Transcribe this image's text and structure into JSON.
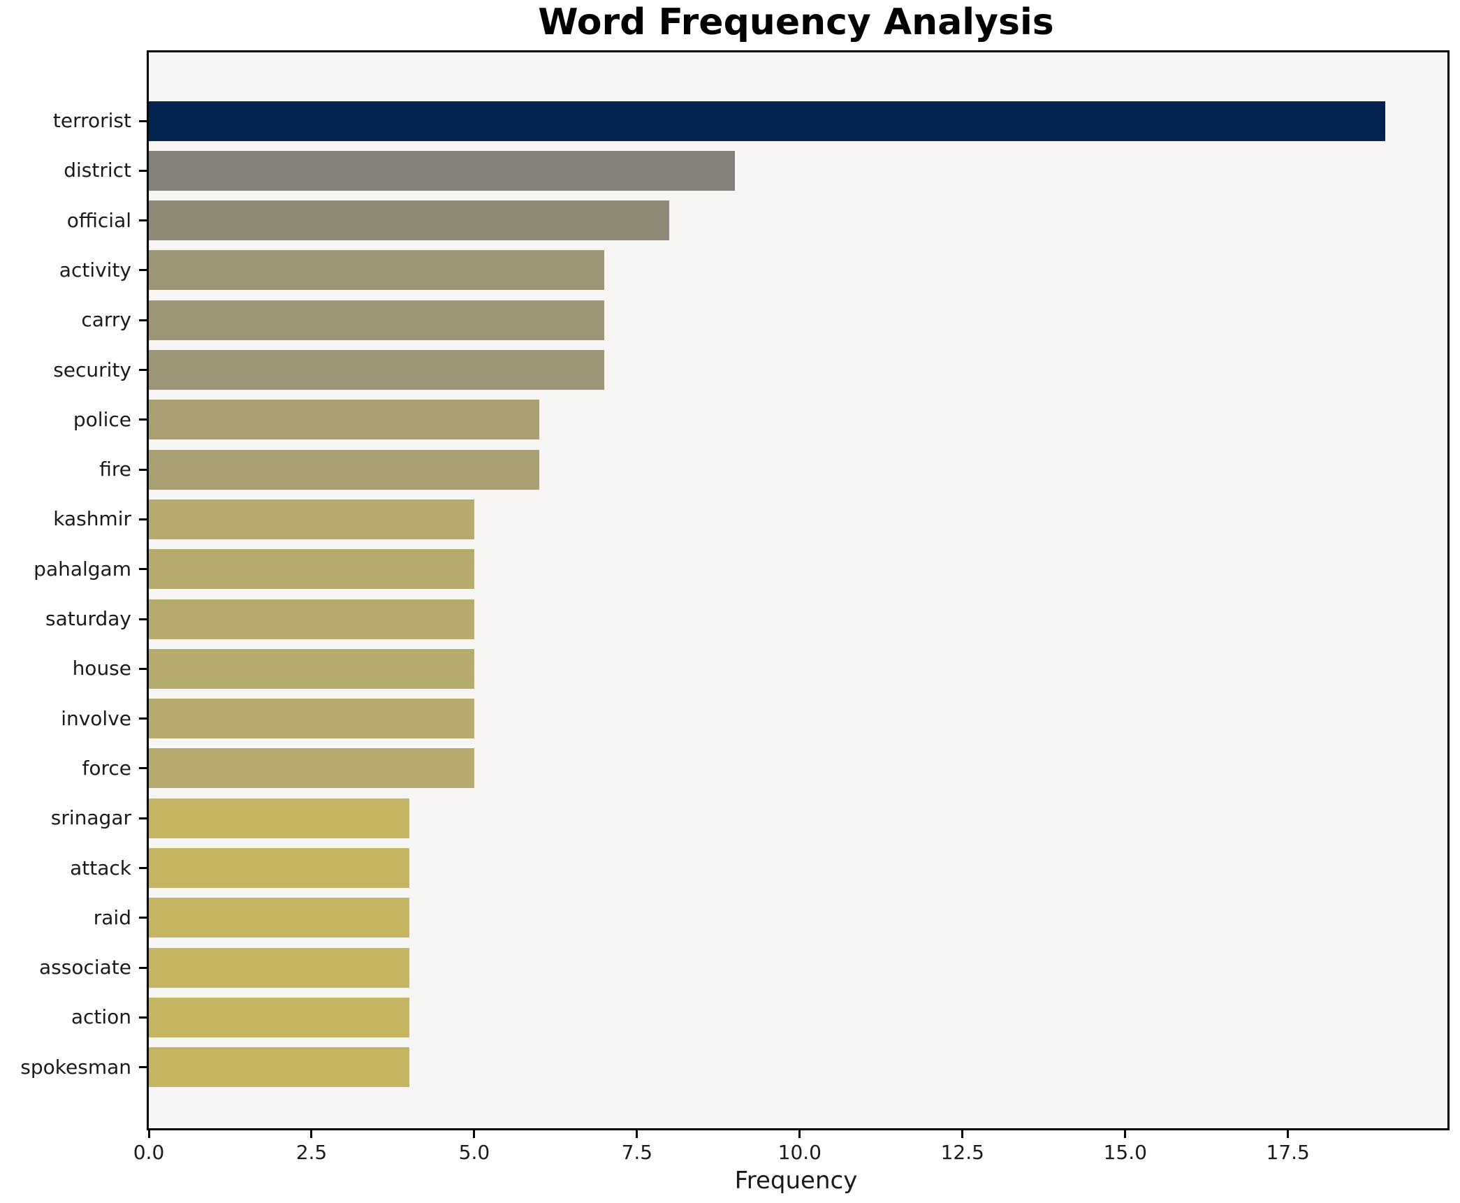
{
  "chart_data": {
    "type": "bar",
    "orientation": "horizontal",
    "title": "Word Frequency Analysis",
    "xlabel": "Frequency",
    "ylabel": "",
    "categories": [
      "terrorist",
      "district",
      "official",
      "activity",
      "carry",
      "security",
      "police",
      "fire",
      "kashmir",
      "pahalgam",
      "saturday",
      "house",
      "involve",
      "force",
      "srinagar",
      "attack",
      "raid",
      "associate",
      "action",
      "spokesman"
    ],
    "values": [
      19,
      9,
      8,
      7,
      7,
      7,
      6,
      6,
      5,
      5,
      5,
      5,
      5,
      5,
      4,
      4,
      4,
      4,
      4,
      4
    ],
    "bar_colors": [
      "#02234d",
      "#83817a",
      "#8f8a77",
      "#9b9475",
      "#9b9475",
      "#9b9475",
      "#a8a073",
      "#a8a073",
      "#b5ab6e",
      "#b5ab6e",
      "#b5ab6e",
      "#b5ab6e",
      "#b5ab6e",
      "#b5ab6e",
      "#c5b563",
      "#c5b563",
      "#c5b563",
      "#c5b563",
      "#c5b563",
      "#c5b563"
    ],
    "xlim": [
      0,
      19.95
    ],
    "xticks": [
      "0.0",
      "2.5",
      "5.0",
      "7.5",
      "10.0",
      "12.5",
      "15.0",
      "17.5"
    ],
    "grid": false,
    "legend": null,
    "plot_background": "#f7f6f5",
    "figure_background": "#ffffff",
    "spine_color": "#000000"
  }
}
